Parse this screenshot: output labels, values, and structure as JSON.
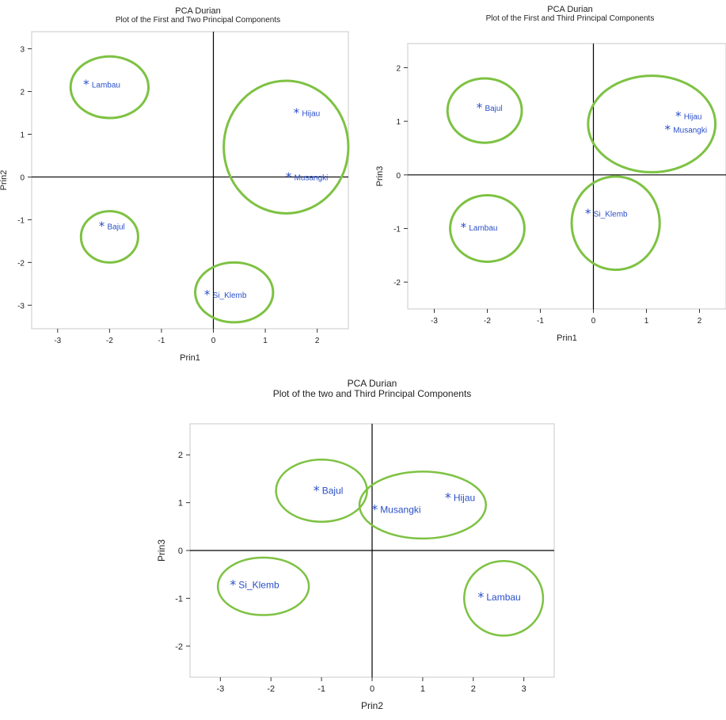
{
  "colors": {
    "point": "#2A4FC9",
    "label": "#2A4FC9",
    "ellipse": "#7DC242",
    "axis": "#000000",
    "frame": "#C8C8C8"
  },
  "chart_data": [
    {
      "type": "scatter",
      "title": "PCA  Durian",
      "subtitle": "Plot of the First and Two Principal Components",
      "xlabel": "Prin1",
      "ylabel": "Prin2",
      "xlim": [
        -3.5,
        2.6
      ],
      "ylim": [
        -3.55,
        3.4
      ],
      "xticks": [
        "-3",
        "-2",
        "-1",
        "0",
        "1",
        "2"
      ],
      "yticks": [
        "3",
        "2",
        "1",
        "0",
        "-1",
        "-2",
        "-3"
      ],
      "marker": "*",
      "points": [
        {
          "label": "Lambau",
          "x": -2.45,
          "y": 2.17
        },
        {
          "label": "Hijau",
          "x": 1.6,
          "y": 1.5
        },
        {
          "label": "Musangki",
          "x": 1.45,
          "y": 0.0
        },
        {
          "label": "Bajul",
          "x": -2.15,
          "y": -1.15
        },
        {
          "label": "Si_Klemb",
          "x": -0.12,
          "y": -2.75
        }
      ],
      "groups": [
        {
          "cx": -2.0,
          "cy": 2.1,
          "rx": 0.75,
          "ry": 0.72
        },
        {
          "cx": 1.4,
          "cy": 0.7,
          "rx": 1.2,
          "ry": 1.55
        },
        {
          "cx": -2.0,
          "cy": -1.4,
          "rx": 0.55,
          "ry": 0.6
        },
        {
          "cx": 0.4,
          "cy": -2.7,
          "rx": 0.75,
          "ry": 0.7
        }
      ]
    },
    {
      "type": "scatter",
      "title": "PCA  Durian",
      "subtitle": "Plot of the First and Third Principal Components",
      "xlabel": "Prin1",
      "ylabel": "Prin3",
      "xlim": [
        -3.5,
        2.5
      ],
      "ylim": [
        -2.5,
        2.45
      ],
      "xticks": [
        "-3",
        "-2",
        "-1",
        "0",
        "1",
        "2"
      ],
      "yticks": [
        "2",
        "1",
        "0",
        "-1",
        "-2"
      ],
      "marker": "*",
      "points": [
        {
          "label": "Bajul",
          "x": -2.15,
          "y": 1.25
        },
        {
          "label": "Hijau",
          "x": 1.6,
          "y": 1.1
        },
        {
          "label": "Musangki",
          "x": 1.4,
          "y": 0.85
        },
        {
          "label": "Si_Klemb",
          "x": -0.1,
          "y": -0.72
        },
        {
          "label": "Lambau",
          "x": -2.45,
          "y": -0.98
        }
      ],
      "groups": [
        {
          "cx": -2.05,
          "cy": 1.2,
          "rx": 0.7,
          "ry": 0.6
        },
        {
          "cx": 1.1,
          "cy": 0.95,
          "rx": 1.2,
          "ry": 0.9
        },
        {
          "cx": -2.0,
          "cy": -1.0,
          "rx": 0.7,
          "ry": 0.62
        },
        {
          "cx": 0.42,
          "cy": -0.9,
          "rx": 0.83,
          "ry": 0.87
        }
      ]
    },
    {
      "type": "scatter",
      "title": "PCA  Durian",
      "subtitle": "Plot of the two and Third Principal Components",
      "xlabel": "Prin2",
      "ylabel": "Prin3",
      "xlim": [
        -3.6,
        3.6
      ],
      "ylim": [
        -2.65,
        2.65
      ],
      "xticks": [
        "-3",
        "-2",
        "-1",
        "0",
        "1",
        "2",
        "3"
      ],
      "yticks": [
        "2",
        "1",
        "0",
        "-1",
        "-2"
      ],
      "marker": "*",
      "points": [
        {
          "label": "Bajul",
          "x": -1.1,
          "y": 1.25
        },
        {
          "label": "Musangki",
          "x": 0.05,
          "y": 0.85
        },
        {
          "label": "Hijau",
          "x": 1.5,
          "y": 1.1
        },
        {
          "label": "Si_Klemb",
          "x": -2.75,
          "y": -0.72
        },
        {
          "label": "Lambau",
          "x": 2.15,
          "y": -0.98
        }
      ],
      "groups": [
        {
          "cx": -1.0,
          "cy": 1.25,
          "rx": 0.9,
          "ry": 0.65
        },
        {
          "cx": 1.0,
          "cy": 0.95,
          "rx": 1.25,
          "ry": 0.7
        },
        {
          "cx": -2.15,
          "cy": -0.75,
          "rx": 0.9,
          "ry": 0.6
        },
        {
          "cx": 2.6,
          "cy": -1.0,
          "rx": 0.78,
          "ry": 0.78
        }
      ]
    }
  ]
}
